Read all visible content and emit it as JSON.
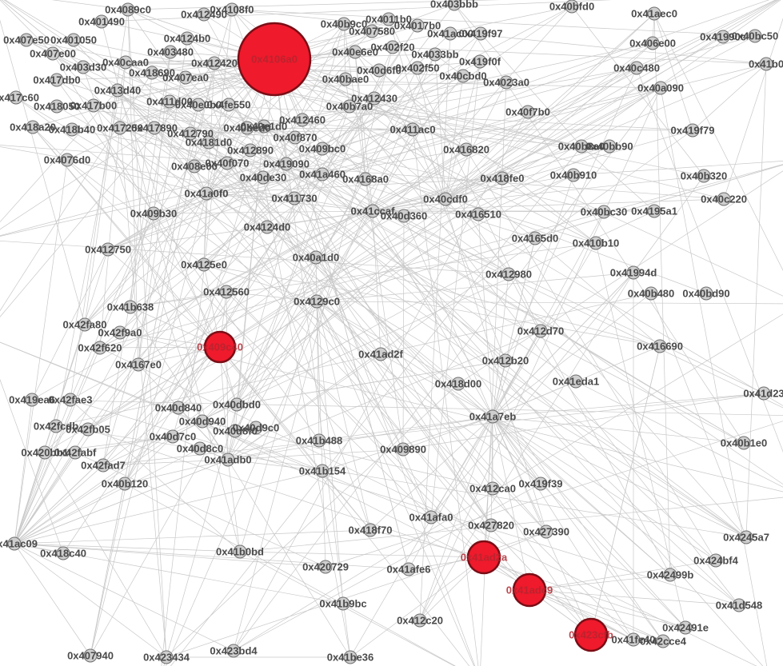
{
  "graph": {
    "node_color": "#cfcfcf",
    "highlight_color": "#ef1a2c",
    "edge_color": "#c8c8c8",
    "nodes": [
      {
        "id": "0x4106a0",
        "hot": true
      },
      {
        "id": "0x409c40",
        "hot": true
      },
      {
        "id": "0x41ad2a",
        "hot": true
      },
      {
        "id": "0x41adc9",
        "hot": true
      },
      {
        "id": "0x423cfb",
        "hot": true
      },
      {
        "id": "0x4089c0"
      },
      {
        "id": "0x401490"
      },
      {
        "id": "0x4124b0"
      },
      {
        "id": "0x403480"
      },
      {
        "id": "0x412420"
      },
      {
        "id": "0x407ea0"
      },
      {
        "id": "0x4108f0"
      },
      {
        "id": "0x412490"
      },
      {
        "id": "0x407e50"
      },
      {
        "id": "0x401050"
      },
      {
        "id": "0x407e00"
      },
      {
        "id": "0x403d30"
      },
      {
        "id": "0x40caa0"
      },
      {
        "id": "0x418690"
      },
      {
        "id": "0x417db0"
      },
      {
        "id": "0x413d40"
      },
      {
        "id": "0x417c60"
      },
      {
        "id": "0x418050"
      },
      {
        "id": "0x417b00"
      },
      {
        "id": "0x411d00"
      },
      {
        "id": "0x40e0b0"
      },
      {
        "id": "0x4fe550"
      },
      {
        "id": "0x418a20"
      },
      {
        "id": "0x418b40"
      },
      {
        "id": "0x417250"
      },
      {
        "id": "0x417890"
      },
      {
        "id": "0x412790"
      },
      {
        "id": "0x4181d0"
      },
      {
        "id": "0x40f870"
      },
      {
        "id": "0x412890"
      },
      {
        "id": "0x40f070"
      },
      {
        "id": "0x408e00"
      },
      {
        "id": "0x40de30"
      },
      {
        "id": "0x419090"
      },
      {
        "id": "0x41a460"
      },
      {
        "id": "0x4076d0"
      },
      {
        "id": "0x41a0f0"
      },
      {
        "id": "0x411730"
      },
      {
        "id": "0x409b30"
      },
      {
        "id": "0x4124d0"
      },
      {
        "id": "0x412750"
      },
      {
        "id": "0x4125e0"
      },
      {
        "id": "0x40a1d0"
      },
      {
        "id": "0x412560"
      },
      {
        "id": "0x4129c0"
      },
      {
        "id": "0x41b638"
      },
      {
        "id": "0x42fa80"
      },
      {
        "id": "0x42f9a0"
      },
      {
        "id": "0x42f620"
      },
      {
        "id": "0x4167e0"
      },
      {
        "id": "0x41ad2f"
      },
      {
        "id": "0x418d00"
      },
      {
        "id": "0x41a7eb"
      },
      {
        "id": "0x412b20"
      },
      {
        "id": "0x412d70"
      },
      {
        "id": "0x41eda1"
      },
      {
        "id": "0x416690"
      },
      {
        "id": "0x41d23"
      },
      {
        "id": "0x41ac09"
      },
      {
        "id": "0x418c40"
      },
      {
        "id": "0x41b0bd"
      },
      {
        "id": "0x420729"
      },
      {
        "id": "0x41afe6"
      },
      {
        "id": "0x41b9bc"
      },
      {
        "id": "0x412c20"
      },
      {
        "id": "0x418f70"
      },
      {
        "id": "0x41afa0"
      },
      {
        "id": "0x427820"
      },
      {
        "id": "0x427390"
      },
      {
        "id": "0x412ca0"
      },
      {
        "id": "0x419f39"
      },
      {
        "id": "0x409890"
      },
      {
        "id": "0x41b154"
      },
      {
        "id": "0x41b488"
      },
      {
        "id": "0x41adb0"
      },
      {
        "id": "0x40d840"
      },
      {
        "id": "0x40dbd0"
      },
      {
        "id": "0x40d940"
      },
      {
        "id": "0x40d9c0"
      },
      {
        "id": "0x40d7c0"
      },
      {
        "id": "0x40d8c0"
      },
      {
        "id": "0x40d8f0"
      },
      {
        "id": "0x42fae3"
      },
      {
        "id": "0x419ea6"
      },
      {
        "id": "0x42fb05"
      },
      {
        "id": "0x42fcdb"
      },
      {
        "id": "0x42fabf"
      },
      {
        "id": "0x420bb1"
      },
      {
        "id": "0x42fad7"
      },
      {
        "id": "0x40b120"
      },
      {
        "id": "0x407940"
      },
      {
        "id": "0x423434"
      },
      {
        "id": "0x423bd4"
      },
      {
        "id": "0x41be36"
      },
      {
        "id": "0x41fe40"
      },
      {
        "id": "0x42cce4"
      },
      {
        "id": "0x42491e"
      },
      {
        "id": "0x41d548"
      },
      {
        "id": "0x42499b"
      },
      {
        "id": "0x424bf4"
      },
      {
        "id": "0x4245a7"
      },
      {
        "id": "0x40b1e0"
      },
      {
        "id": "0x4165d0"
      },
      {
        "id": "0x410b10"
      },
      {
        "id": "0x412980"
      },
      {
        "id": "0x41994d"
      },
      {
        "id": "0x40b480"
      },
      {
        "id": "0x40bd90"
      },
      {
        "id": "0x40bc30"
      },
      {
        "id": "0x4195a1"
      },
      {
        "id": "0x40b910"
      },
      {
        "id": "0x40b320"
      },
      {
        "id": "0x40c220"
      },
      {
        "id": "0x40b8a0"
      },
      {
        "id": "0x40bb90"
      },
      {
        "id": "0x419f79"
      },
      {
        "id": "0x40f7b0"
      },
      {
        "id": "0x40a090"
      },
      {
        "id": "0x40c480"
      },
      {
        "id": "0x406e00"
      },
      {
        "id": "0x41aec0"
      },
      {
        "id": "0x40bfd0"
      },
      {
        "id": "0x41990c"
      },
      {
        "id": "0x40bc50"
      },
      {
        "id": "0x4023a0"
      },
      {
        "id": "0x419f0f"
      },
      {
        "id": "0x419f97"
      },
      {
        "id": "0x41ac00"
      },
      {
        "id": "0x403bbb"
      },
      {
        "id": "0x40cbd0"
      },
      {
        "id": "0x4033bb"
      },
      {
        "id": "0x402f50"
      },
      {
        "id": "0x402f20"
      },
      {
        "id": "0x40d6f0"
      },
      {
        "id": "0x40bae0"
      },
      {
        "id": "0x40e6e0"
      },
      {
        "id": "0x407580"
      },
      {
        "id": "0x4011b0"
      },
      {
        "id": "0x40b9c0"
      },
      {
        "id": "0x4017b0"
      },
      {
        "id": "0x412430"
      },
      {
        "id": "0x40b7a0"
      },
      {
        "id": "0x412460"
      },
      {
        "id": "0x411ac0"
      },
      {
        "id": "0x416820"
      },
      {
        "id": "0x4168a0"
      },
      {
        "id": "0x418fe0"
      },
      {
        "id": "0x40cdf0"
      },
      {
        "id": "0x41ccaf"
      },
      {
        "id": "0x40d360"
      },
      {
        "id": "0x416510"
      },
      {
        "id": "0x409bc0"
      },
      {
        "id": "0x40e1d0"
      },
      {
        "id": "0x40bed0"
      },
      {
        "id": "0x41b0"
      }
    ]
  }
}
